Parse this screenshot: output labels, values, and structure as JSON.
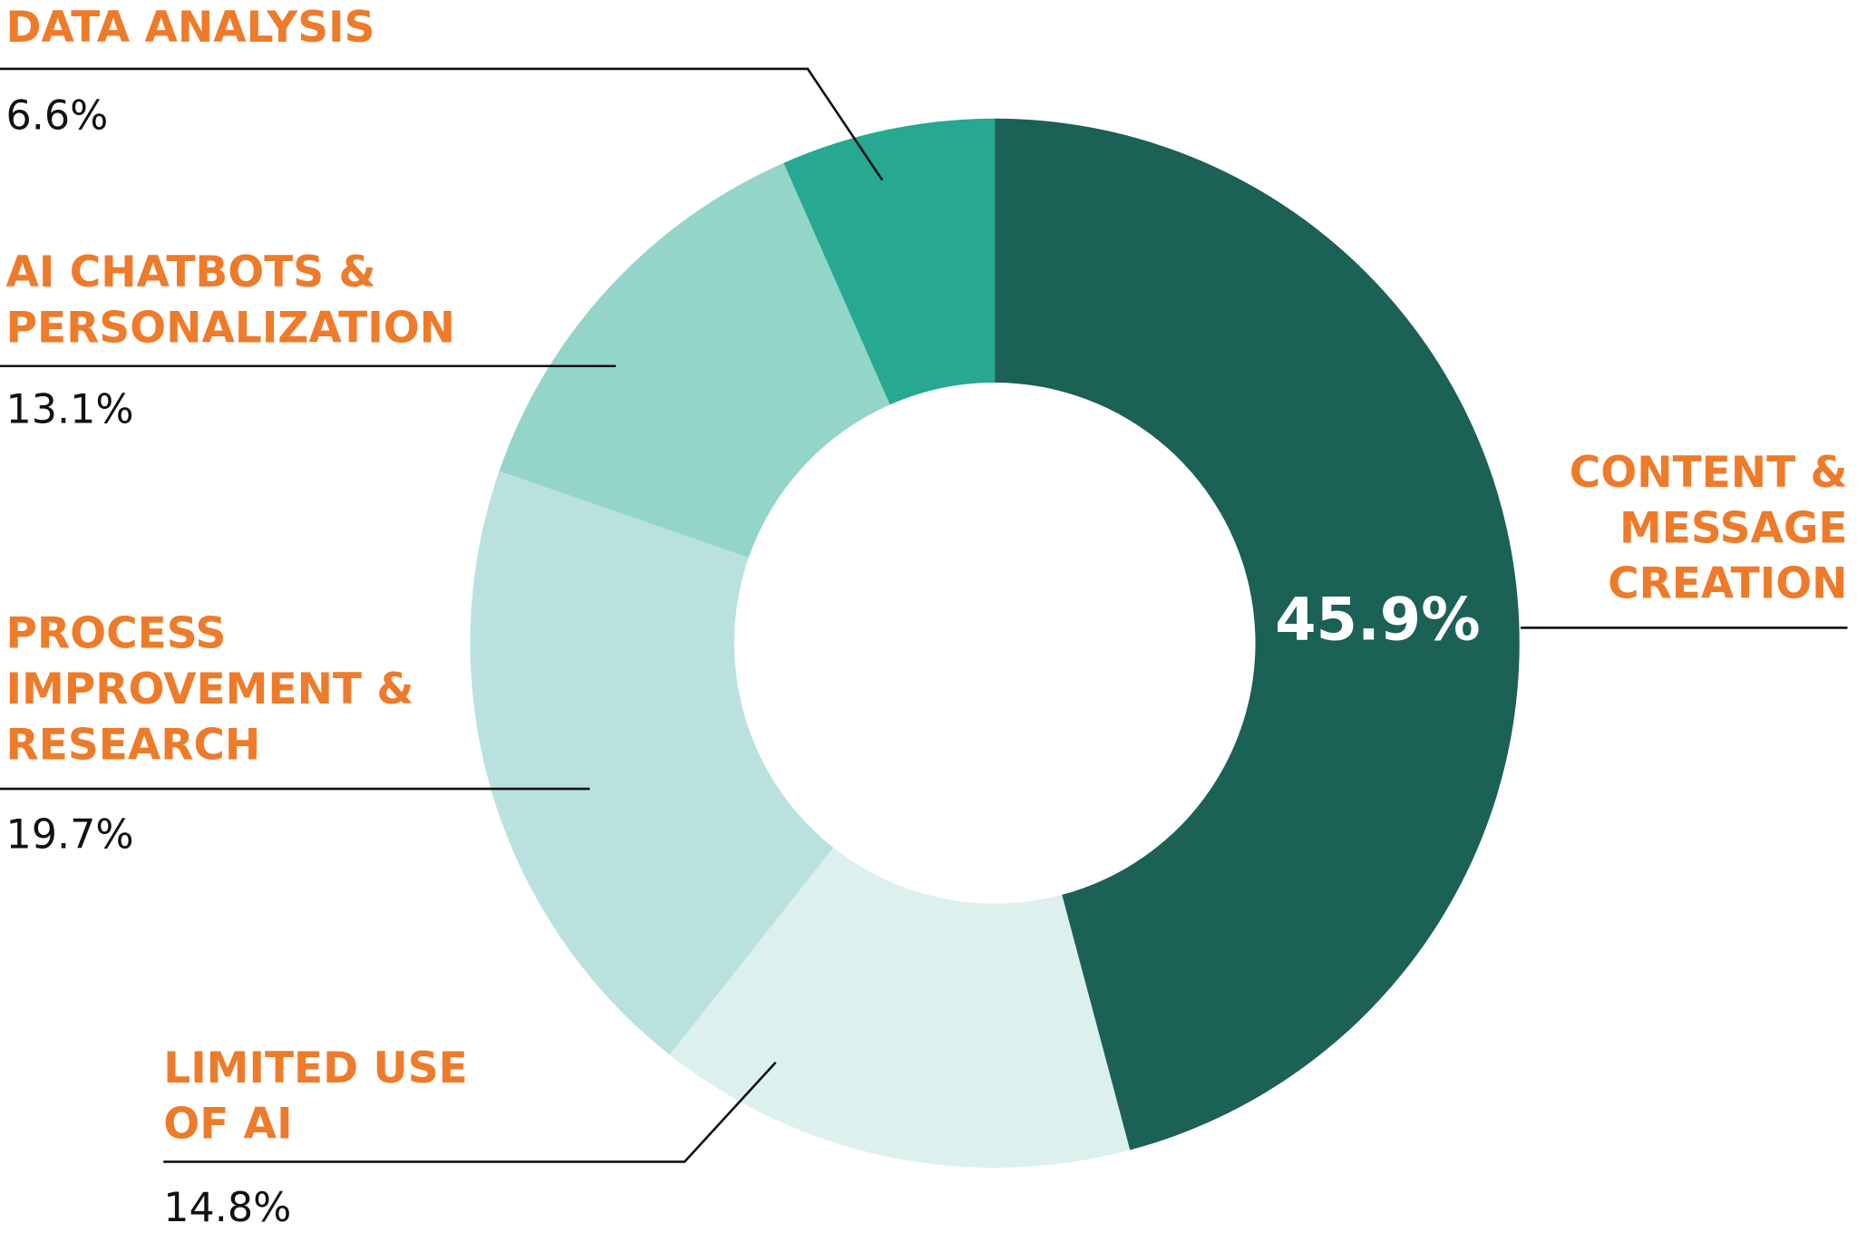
{
  "chart_data": {
    "type": "donut",
    "categories": [
      [
        "CONTENT &",
        "MESSAGE",
        "CREATION"
      ],
      [
        "LIMITED USE",
        "OF AI"
      ],
      [
        "PROCESS",
        "IMPROVEMENT &",
        "RESEARCH"
      ],
      [
        "AI CHATBOTS &",
        "PERSONALIZATION"
      ],
      [
        "DATA ANALYSIS"
      ]
    ],
    "values": [
      45.9,
      14.8,
      19.7,
      13.1,
      6.6
    ],
    "value_labels": [
      "45.9%",
      "14.8%",
      "19.7%",
      "13.1%",
      "6.6%"
    ],
    "colors": [
      "#1b6155",
      "#dcf0ee",
      "#b9e2de",
      "#94d5ca",
      "#26a891"
    ]
  }
}
